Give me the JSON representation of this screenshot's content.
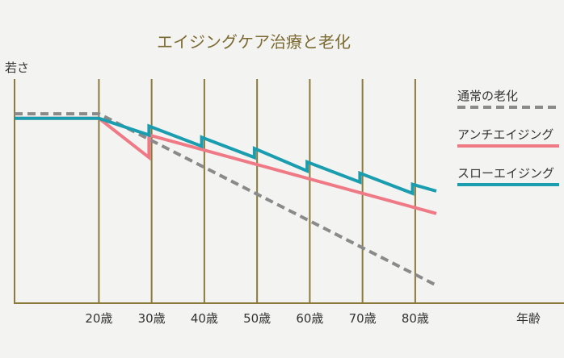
{
  "chart_data": {
    "type": "line",
    "title": "エイジングケア治療と老化",
    "ylabel": "若さ",
    "xlabel": "年齢",
    "x_ticks": [
      "20歳",
      "30歳",
      "40歳",
      "50歳",
      "60歳",
      "70歳",
      "80歳"
    ],
    "x_tick_values": [
      20,
      30,
      40,
      50,
      60,
      70,
      80
    ],
    "xlim": [
      4,
      84
    ],
    "ylim": [
      0,
      100
    ],
    "grid": "vertical",
    "legend_placement": "right",
    "series": [
      {
        "name": "通常の老化",
        "color": "#8a8a8a",
        "dash": true,
        "points": [
          [
            4,
            84.5
          ],
          [
            20,
            84.5
          ],
          [
            84,
            8
          ]
        ]
      },
      {
        "name": "アンチエイジング",
        "color": "#ef7a86",
        "dash": false,
        "points": [
          [
            4,
            82.5
          ],
          [
            20,
            82.5
          ],
          [
            29.5,
            65
          ],
          [
            29.5,
            75
          ],
          [
            84,
            40
          ]
        ]
      },
      {
        "name": "スローエイジング",
        "color": "#1b9db0",
        "dash": false,
        "points": [
          [
            4,
            82.5
          ],
          [
            20,
            82.5
          ],
          [
            29.5,
            75
          ],
          [
            29.5,
            79
          ],
          [
            39.5,
            70
          ],
          [
            39.5,
            74
          ],
          [
            49.5,
            65
          ],
          [
            49.5,
            69
          ],
          [
            59.5,
            59
          ],
          [
            59.5,
            63
          ],
          [
            69.5,
            54
          ],
          [
            69.5,
            58
          ],
          [
            79.5,
            49
          ],
          [
            79.5,
            53
          ],
          [
            84,
            50
          ]
        ]
      }
    ]
  }
}
